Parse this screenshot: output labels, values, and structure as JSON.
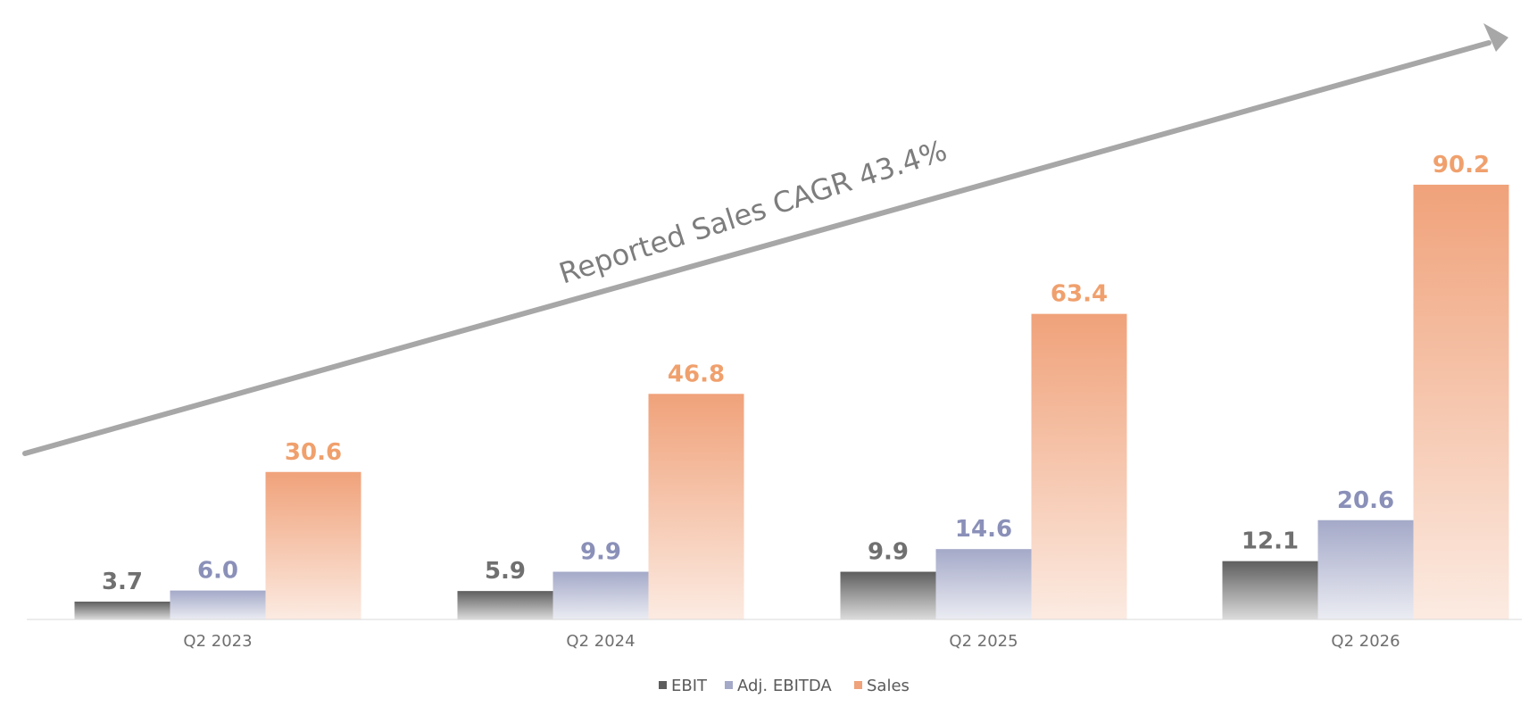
{
  "chart_data": {
    "type": "bar",
    "categories": [
      "Q2 2023",
      "Q2 2024",
      "Q2 2025",
      "Q2 2026"
    ],
    "series": [
      {
        "name": "EBIT",
        "values": [
          3.7,
          5.9,
          9.9,
          12.1
        ],
        "labels": [
          "3.7",
          "5.9",
          "9.9",
          "12.1"
        ],
        "color": "#5e5e5e",
        "label_color": "#707070"
      },
      {
        "name": "Adj. EBITDA",
        "values": [
          6.0,
          9.9,
          14.6,
          20.6
        ],
        "labels": [
          "6.0",
          "9.9",
          "14.6",
          "20.6"
        ],
        "color": "#a4a9c8",
        "label_color": "#8a90b8"
      },
      {
        "name": "Sales",
        "values": [
          30.6,
          46.8,
          63.4,
          90.2
        ],
        "labels": [
          "30.6",
          "46.8",
          "63.4",
          "90.2"
        ],
        "color": "#f0a27a",
        "label_color": "#f0a06d"
      }
    ],
    "annotation": "Reported Sales CAGR 43.4%",
    "legend_position": "bottom",
    "grid": false,
    "ylim": [
      0,
      100
    ]
  }
}
